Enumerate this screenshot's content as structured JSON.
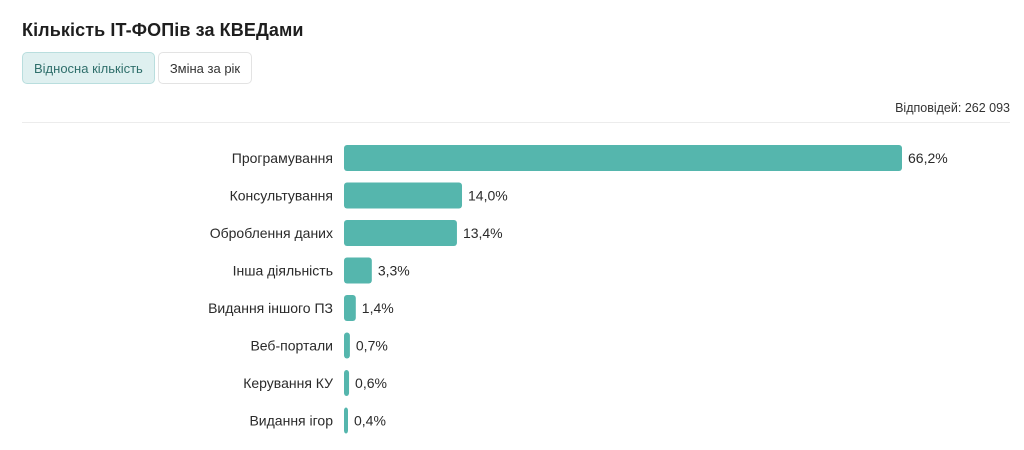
{
  "header": {
    "title": "Кількість IT-ФОПів за КВЕДами"
  },
  "tabs": [
    {
      "label": "Відносна кількість",
      "active": true
    },
    {
      "label": "Зміна за рік",
      "active": false
    }
  ],
  "responses": "Відповідей: 262 093",
  "colors": {
    "bar": "#55b6ad",
    "active_tab_bg": "#dff0f0",
    "active_tab_text": "#2f6f6b"
  },
  "chart_data": {
    "type": "bar",
    "orientation": "horizontal",
    "title": "Кількість IT-ФОПів за КВЕДами",
    "categories": [
      "Програмування",
      "Консультування",
      "Оброблення даних",
      "Інша діяльність",
      "Видання іншого ПЗ",
      "Веб-портали",
      "Керування КУ",
      "Видання ігор"
    ],
    "values": [
      66.2,
      14.0,
      13.4,
      3.3,
      1.4,
      0.7,
      0.6,
      0.4
    ],
    "value_labels": [
      "66,2%",
      "14,0%",
      "13,4%",
      "3,3%",
      "1,4%",
      "0,7%",
      "0,6%",
      "0,4%"
    ],
    "xlim": [
      0,
      66.2
    ],
    "grid": false,
    "legend": "none"
  }
}
